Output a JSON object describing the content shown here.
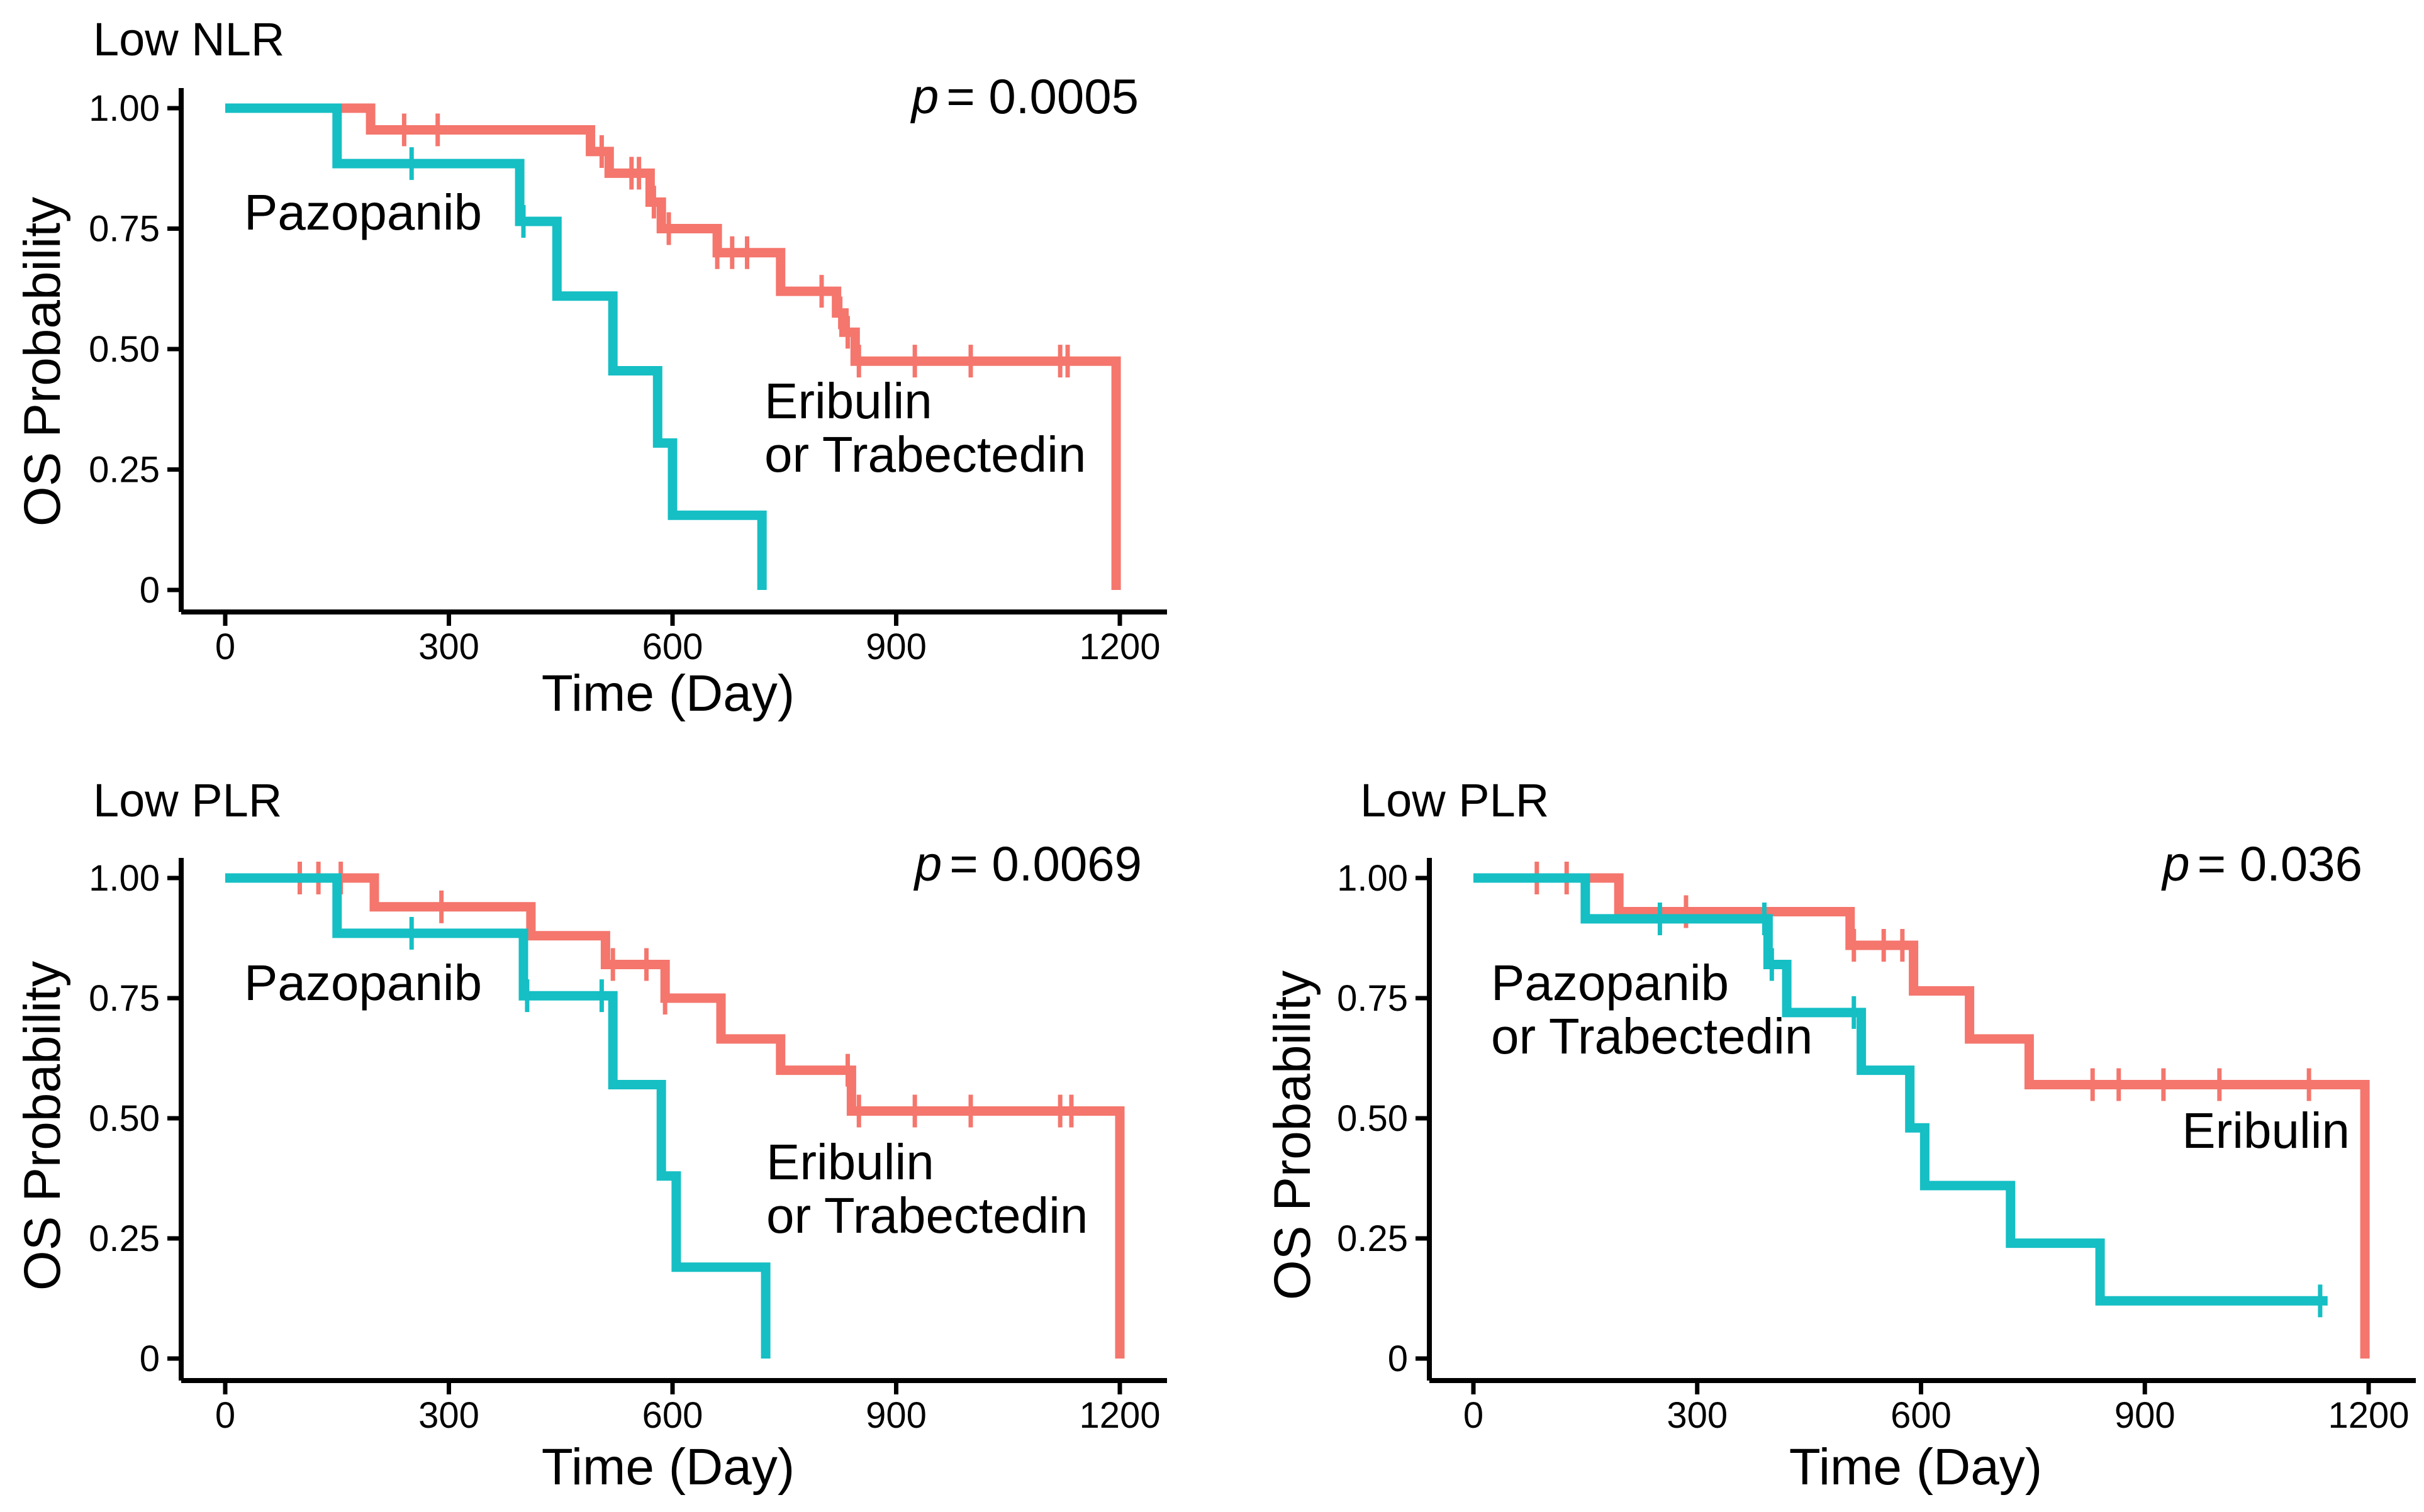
{
  "colors": {
    "eribulin": "#f4766d",
    "pazopanib": "#15bfc4"
  },
  "chart_data": [
    {
      "type": "line",
      "chart_subtype": "kaplan-meier",
      "title": "Low NLR",
      "p_value_prefix": "p",
      "p_value_text": "= 0.0005",
      "xlabel": "Time (Day)",
      "ylabel": "OS Probability",
      "xlim": [
        0,
        1200
      ],
      "ylim": [
        0,
        1
      ],
      "x_ticks": [
        0,
        300,
        600,
        900,
        1200
      ],
      "y_ticks": [
        0,
        0.25,
        0.5,
        0.75,
        1.0
      ],
      "x_tick_labels": [
        "0",
        "300",
        "600",
        "900",
        "1200"
      ],
      "y_tick_labels": [
        "0",
        "0.25",
        "0.50",
        "0.75",
        "1.00"
      ],
      "grid": false,
      "series": [
        {
          "name": "Eribulin or Trabectedin",
          "label_lines": [
            "Eribulin",
            "or Trabectedin"
          ],
          "color": "#f4766d",
          "steps": [
            [
              0,
              1.0
            ],
            [
              195,
              0.955
            ],
            [
              490,
              0.91
            ],
            [
              515,
              0.865
            ],
            [
              570,
              0.805
            ],
            [
              585,
              0.75
            ],
            [
              660,
              0.7
            ],
            [
              745,
              0.62
            ],
            [
              820,
              0.575
            ],
            [
              830,
              0.535
            ],
            [
              845,
              0.475
            ],
            [
              1195,
              0.475
            ],
            [
              1195,
              0.0
            ]
          ],
          "end_x": 1195,
          "censor_x": [
            240,
            285,
            505,
            545,
            555,
            575,
            595,
            660,
            680,
            700,
            800,
            825,
            835,
            850,
            925,
            1000,
            1120,
            1130
          ]
        },
        {
          "name": "Pazopanib",
          "label_lines": [
            "Pazopanib"
          ],
          "color": "#15bfc4",
          "steps": [
            [
              0,
              1.0
            ],
            [
              150,
              0.885
            ],
            [
              395,
              0.765
            ],
            [
              445,
              0.61
            ],
            [
              520,
              0.455
            ],
            [
              580,
              0.305
            ],
            [
              600,
              0.155
            ],
            [
              720,
              0.155
            ],
            [
              720,
              0.0
            ]
          ],
          "end_x": 720,
          "censor_x": [
            250,
            400
          ]
        }
      ]
    },
    {
      "type": "line",
      "chart_subtype": "kaplan-meier",
      "title": "Low PLR",
      "p_value_prefix": "p",
      "p_value_text": "= 0.0069",
      "xlabel": "Time (Day)",
      "ylabel": "OS Probability",
      "xlim": [
        0,
        1200
      ],
      "ylim": [
        0,
        1
      ],
      "x_ticks": [
        0,
        300,
        600,
        900,
        1200
      ],
      "y_ticks": [
        0,
        0.25,
        0.5,
        0.75,
        1.0
      ],
      "x_tick_labels": [
        "0",
        "300",
        "600",
        "900",
        "1200"
      ],
      "y_tick_labels": [
        "0",
        "0.25",
        "0.50",
        "0.75",
        "1.00"
      ],
      "grid": false,
      "series": [
        {
          "name": "Eribulin or Trabectedin",
          "label_lines": [
            "Eribulin",
            "or Trabectedin"
          ],
          "color": "#f4766d",
          "steps": [
            [
              0,
              1.0
            ],
            [
              200,
              0.94
            ],
            [
              410,
              0.88
            ],
            [
              510,
              0.82
            ],
            [
              590,
              0.75
            ],
            [
              665,
              0.665
            ],
            [
              745,
              0.6
            ],
            [
              840,
              0.515
            ],
            [
              1200,
              0.515
            ],
            [
              1200,
              0.0
            ]
          ],
          "end_x": 1200,
          "censor_x": [
            100,
            125,
            155,
            290,
            520,
            565,
            590,
            835,
            850,
            925,
            1000,
            1120,
            1135
          ]
        },
        {
          "name": "Pazopanib",
          "label_lines": [
            "Pazopanib"
          ],
          "color": "#15bfc4",
          "steps": [
            [
              0,
              1.0
            ],
            [
              150,
              0.885
            ],
            [
              400,
              0.755
            ],
            [
              520,
              0.57
            ],
            [
              585,
              0.38
            ],
            [
              605,
              0.19
            ],
            [
              725,
              0.19
            ],
            [
              725,
              0.0
            ]
          ],
          "end_x": 725,
          "censor_x": [
            250,
            405,
            505
          ]
        }
      ]
    },
    {
      "type": "line",
      "chart_subtype": "kaplan-meier",
      "title": "Low PLR",
      "p_value_prefix": "p",
      "p_value_text": "= 0.036",
      "xlabel": "Time (Day)",
      "ylabel": "OS Probability",
      "xlim": [
        0,
        1200
      ],
      "ylim": [
        0,
        1
      ],
      "x_ticks": [
        0,
        300,
        600,
        900,
        1200
      ],
      "y_ticks": [
        0,
        0.25,
        0.5,
        0.75,
        1.0
      ],
      "x_tick_labels": [
        "0",
        "300",
        "600",
        "900",
        "1200"
      ],
      "y_tick_labels": [
        "0",
        "0.25",
        "0.50",
        "0.75",
        "1.00"
      ],
      "grid": false,
      "series": [
        {
          "name": "Eribulin",
          "label_lines": [
            "Eribulin"
          ],
          "color": "#f4766d",
          "steps": [
            [
              0,
              1.0
            ],
            [
              195,
              0.93
            ],
            [
              505,
              0.86
            ],
            [
              590,
              0.765
            ],
            [
              665,
              0.665
            ],
            [
              745,
              0.57
            ],
            [
              1195,
              0.57
            ],
            [
              1195,
              0.0
            ]
          ],
          "end_x": 1195,
          "censor_x": [
            85,
            125,
            285,
            510,
            550,
            575,
            830,
            865,
            925,
            1000,
            1120
          ]
        },
        {
          "name": "Pazopanib or Trabectedin",
          "label_lines": [
            "Pazopanib",
            "or Trabectedin"
          ],
          "color": "#15bfc4",
          "steps": [
            [
              0,
              1.0
            ],
            [
              150,
              0.915
            ],
            [
              395,
              0.82
            ],
            [
              420,
              0.72
            ],
            [
              520,
              0.6
            ],
            [
              585,
              0.48
            ],
            [
              605,
              0.36
            ],
            [
              720,
              0.24
            ],
            [
              840,
              0.12
            ],
            [
              1145,
              0.12
            ]
          ],
          "end_x": 1145,
          "censor_x": [
            250,
            390,
            400,
            510,
            1135
          ]
        }
      ]
    }
  ]
}
